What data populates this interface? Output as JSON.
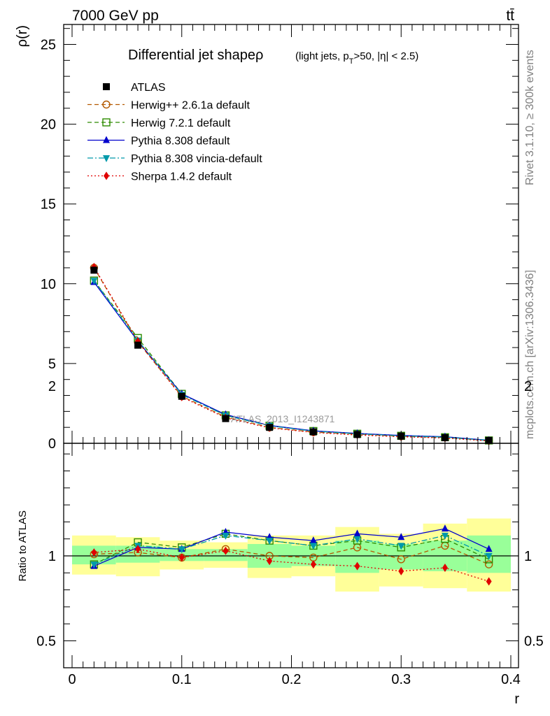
{
  "header": {
    "left": "7000 GeV pp",
    "right": "tt̄"
  },
  "side_labels": {
    "top": "Rivet 3.1.10, ≥ 300k events",
    "bottom": "mcplots.cern.ch [arXiv:1306.3436]"
  },
  "watermark": "ATLAS_2013_I1243871",
  "chart_data": [
    {
      "type": "line",
      "title": "Differential jet shapeρ",
      "title_sub": "(light jets, p_T>50, |η| < 2.5)",
      "ylabel": "ρ(r)",
      "xlabel": "r",
      "xlim": [
        0,
        0.4
      ],
      "ylim": [
        0,
        26
      ],
      "yticks": [
        0,
        5,
        10,
        15,
        20,
        25
      ],
      "xticks": [
        0,
        0.1,
        0.2,
        0.3,
        0.4
      ],
      "xtick_labels": [
        "0",
        "0.1",
        "0.2",
        "0.3",
        "0.4"
      ],
      "legend_position": "top-left",
      "x": [
        0.02,
        0.06,
        0.1,
        0.14,
        0.18,
        0.22,
        0.26,
        0.3,
        0.34,
        0.38
      ],
      "series": [
        {
          "name": "ATLAS",
          "color": "#000000",
          "marker": "square-filled",
          "dash": "none",
          "values": [
            10.85,
            6.15,
            2.95,
            1.55,
            1.0,
            0.72,
            0.55,
            0.45,
            0.35,
            0.18
          ]
        },
        {
          "name": "Herwig++ 2.6.1a default",
          "color": "#b35900",
          "marker": "circle-open",
          "dash": "6,4",
          "values": [
            11.0,
            6.35,
            2.95,
            1.65,
            1.0,
            0.7,
            0.58,
            0.44,
            0.37,
            0.17
          ]
        },
        {
          "name": "Herwig 7.2.1 default",
          "color": "#2e8b00",
          "marker": "square-open",
          "dash": "6,4",
          "values": [
            10.2,
            6.6,
            3.1,
            1.75,
            1.1,
            0.77,
            0.6,
            0.47,
            0.38,
            0.18
          ]
        },
        {
          "name": "Pythia 8.308 default",
          "color": "#0000cc",
          "marker": "triangle-up",
          "dash": "none",
          "values": [
            10.1,
            6.4,
            3.1,
            1.8,
            1.12,
            0.78,
            0.62,
            0.49,
            0.41,
            0.19
          ]
        },
        {
          "name": "Pythia 8.308 vincia-default",
          "color": "#0099aa",
          "marker": "triangle-down",
          "dash": "8,3,2,3",
          "values": [
            10.2,
            6.45,
            3.05,
            1.75,
            1.1,
            0.76,
            0.6,
            0.47,
            0.39,
            0.18
          ]
        },
        {
          "name": "Sherpa 1.4.2 default",
          "color": "#e00000",
          "marker": "diamond",
          "dash": "2,3",
          "values": [
            11.05,
            6.4,
            2.9,
            1.6,
            0.97,
            0.68,
            0.52,
            0.41,
            0.33,
            0.15
          ]
        }
      ]
    },
    {
      "type": "line",
      "ylabel": "Ratio to ATLAS",
      "ylim": [
        0.4,
        2.3
      ],
      "yticks": [
        0.5,
        1,
        2
      ],
      "ytick_labels": [
        "0.5",
        "1",
        "2"
      ],
      "bins": [
        [
          0.0,
          0.04
        ],
        [
          0.04,
          0.08
        ],
        [
          0.08,
          0.12
        ],
        [
          0.12,
          0.16
        ],
        [
          0.16,
          0.2
        ],
        [
          0.2,
          0.24
        ],
        [
          0.24,
          0.28
        ],
        [
          0.28,
          0.32
        ],
        [
          0.32,
          0.36
        ],
        [
          0.36,
          0.4
        ]
      ],
      "band_yellow": [
        [
          0.89,
          1.12
        ],
        [
          0.88,
          1.11
        ],
        [
          0.92,
          1.09
        ],
        [
          0.93,
          1.08
        ],
        [
          0.87,
          1.12
        ],
        [
          0.88,
          1.12
        ],
        [
          0.79,
          1.17
        ],
        [
          0.82,
          1.13
        ],
        [
          0.81,
          1.19
        ],
        [
          0.79,
          1.22
        ]
      ],
      "band_green": [
        [
          0.95,
          1.06
        ],
        [
          0.96,
          1.06
        ],
        [
          0.97,
          1.04
        ],
        [
          0.97,
          1.04
        ],
        [
          0.93,
          1.07
        ],
        [
          0.94,
          1.06
        ],
        [
          0.9,
          1.09
        ],
        [
          0.92,
          1.07
        ],
        [
          0.91,
          1.09
        ],
        [
          0.9,
          1.12
        ]
      ],
      "x": [
        0.02,
        0.06,
        0.1,
        0.14,
        0.18,
        0.22,
        0.26,
        0.3,
        0.34,
        0.38
      ],
      "series": [
        {
          "name": "Herwig++ 2.6.1a default",
          "color": "#b35900",
          "marker": "circle-open",
          "dash": "6,4",
          "values": [
            1.01,
            1.02,
            0.99,
            1.04,
            1.0,
            0.99,
            1.05,
            0.98,
            1.06,
            0.95
          ]
        },
        {
          "name": "Herwig 7.2.1 default",
          "color": "#2e8b00",
          "marker": "square-open",
          "dash": "6,4",
          "values": [
            0.95,
            1.08,
            1.05,
            1.13,
            1.09,
            1.06,
            1.09,
            1.05,
            1.1,
            0.98
          ]
        },
        {
          "name": "Pythia 8.308 default",
          "color": "#0000cc",
          "marker": "triangle-up",
          "dash": "none",
          "values": [
            0.94,
            1.05,
            1.04,
            1.14,
            1.11,
            1.09,
            1.13,
            1.11,
            1.16,
            1.04
          ]
        },
        {
          "name": "Pythia 8.308 vincia-default",
          "color": "#0099aa",
          "marker": "triangle-down",
          "dash": "8,3,2,3",
          "values": [
            0.95,
            1.06,
            1.04,
            1.12,
            1.09,
            1.06,
            1.1,
            1.06,
            1.12,
            1.0
          ]
        },
        {
          "name": "Sherpa 1.4.2 default",
          "color": "#e00000",
          "marker": "diamond",
          "dash": "2,3",
          "values": [
            1.02,
            1.04,
            0.99,
            1.03,
            0.97,
            0.95,
            0.94,
            0.91,
            0.93,
            0.85
          ]
        }
      ]
    }
  ]
}
